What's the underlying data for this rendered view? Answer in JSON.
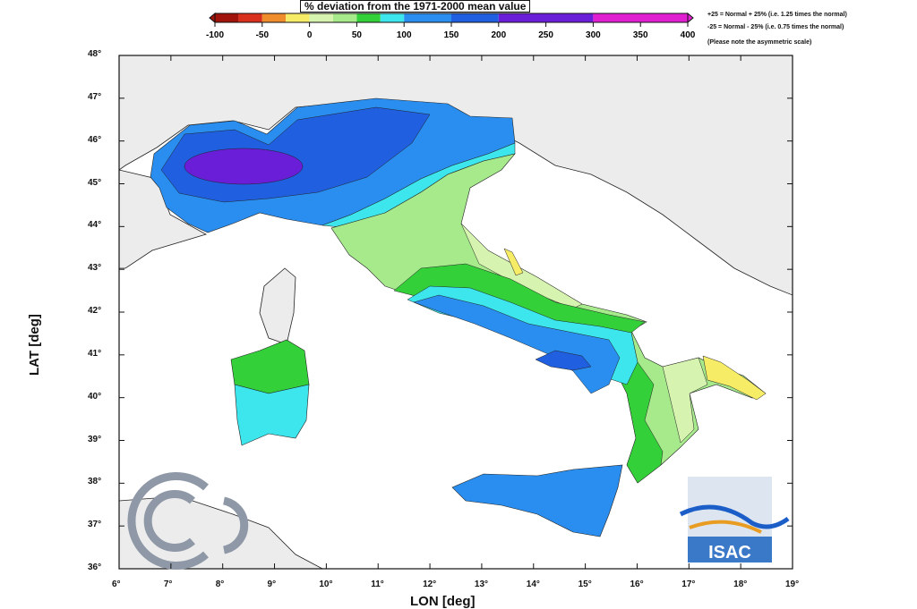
{
  "colorbar": {
    "title": "% deviation from the 1971-2000 mean value",
    "ticks": [
      "-100",
      "-50",
      "0",
      "50",
      "100",
      "150",
      "200",
      "250",
      "300",
      "350",
      "400"
    ],
    "bins": [
      {
        "from": -100,
        "to": -75,
        "color": "#a0140c"
      },
      {
        "from": -75,
        "to": -50,
        "color": "#d8301c"
      },
      {
        "from": -50,
        "to": -25,
        "color": "#ef8c2c"
      },
      {
        "from": -25,
        "to": 0,
        "color": "#f6ec66"
      },
      {
        "from": 0,
        "to": 25,
        "color": "#d6f4b0"
      },
      {
        "from": 25,
        "to": 50,
        "color": "#a6ea8c"
      },
      {
        "from": 50,
        "to": 75,
        "color": "#34d03a"
      },
      {
        "from": 75,
        "to": 100,
        "color": "#3ce6ec"
      },
      {
        "from": 100,
        "to": 150,
        "color": "#2a8ef0"
      },
      {
        "from": 150,
        "to": 200,
        "color": "#1f5fe0"
      },
      {
        "from": 200,
        "to": 300,
        "color": "#6a1ed8"
      },
      {
        "from": 300,
        "to": 400,
        "color": "#e020d0"
      }
    ]
  },
  "notes": [
    "+25 = Normal + 25% (i.e. 1.25 times the normal)",
    "-25 = Normal - 25% (i.e. 0.75 times the normal)",
    "(Please note the asymmetric scale)"
  ],
  "map": {
    "xlabel": "LON [deg]",
    "ylabel": "LAT [deg]",
    "lon_ticks": [
      "6°",
      "7°",
      "8°",
      "9°",
      "10°",
      "11°",
      "12°",
      "13°",
      "14°",
      "15°",
      "16°",
      "17°",
      "18°",
      "19°"
    ],
    "lat_ticks": [
      "36°",
      "37°",
      "38°",
      "39°",
      "40°",
      "41°",
      "42°",
      "43°",
      "44°",
      "45°",
      "46°",
      "47°",
      "48°"
    ],
    "lon_range": [
      6,
      19
    ],
    "lat_range": [
      36,
      48
    ],
    "land_color": "#ececec"
  },
  "logos": {
    "right": "ISAC",
    "left": "CNR"
  }
}
